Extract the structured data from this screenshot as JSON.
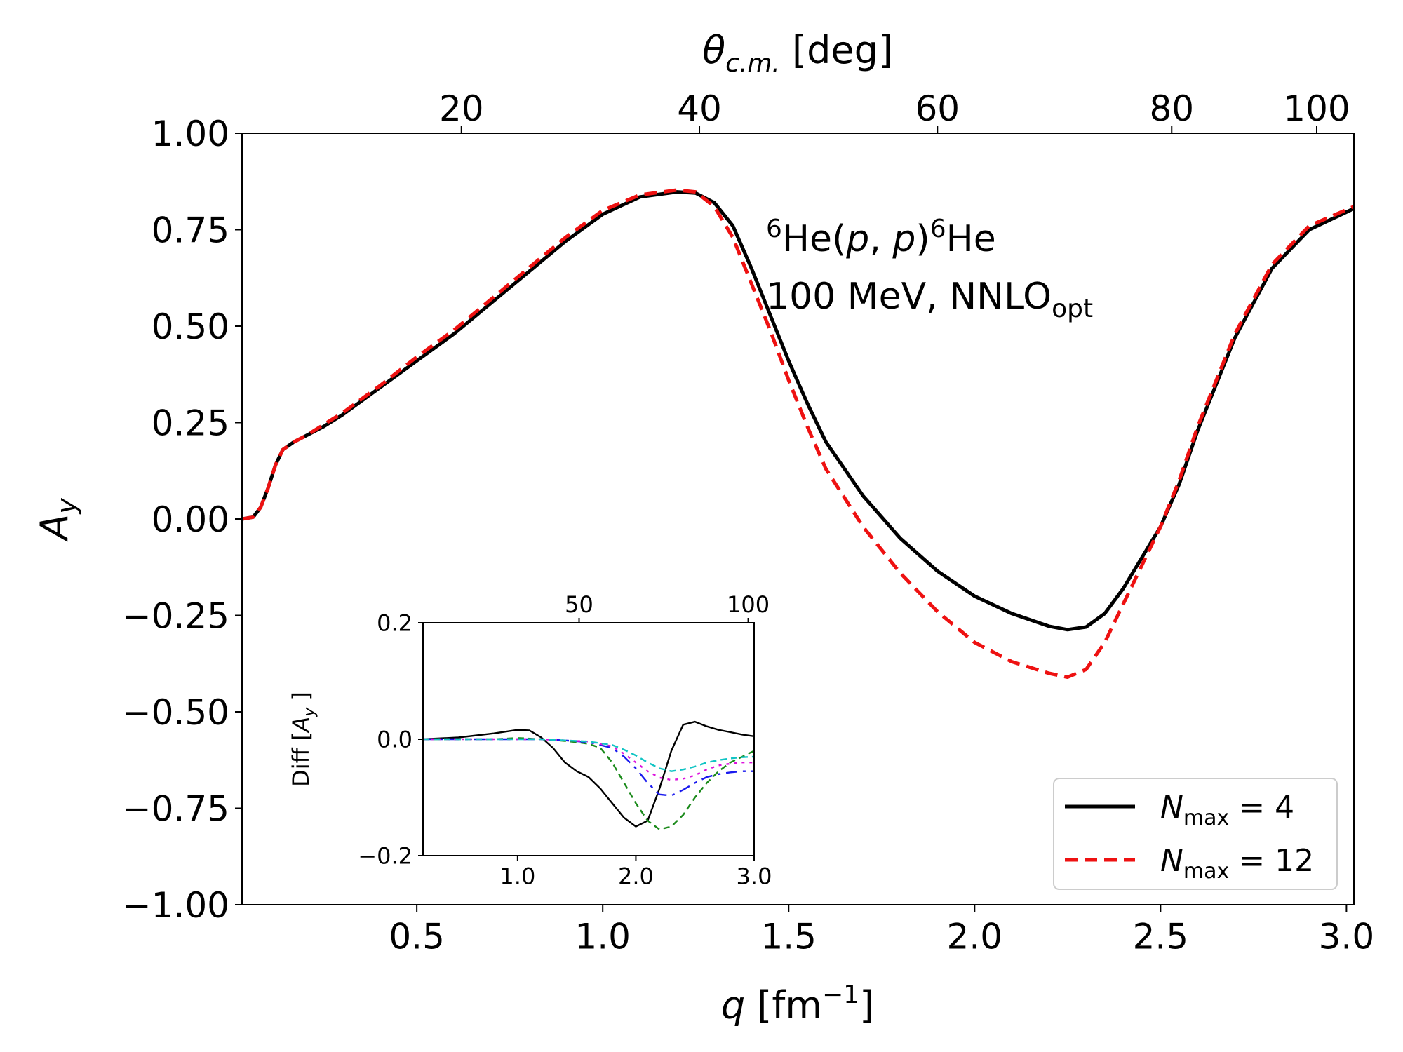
{
  "chart_data": [
    {
      "type": "line",
      "name": "main",
      "xlabel": "q [fm⁻¹]",
      "ylabel": "A_y",
      "top_xlabel": "θ_{c.m.} [deg]",
      "xlim": [
        0.03,
        3.02
      ],
      "ylim": [
        -1.0,
        1.0
      ],
      "xticks": [
        0.5,
        1.0,
        1.5,
        2.0,
        2.5,
        3.0
      ],
      "xtick_labels": [
        "0.5",
        "1.0",
        "1.5",
        "2.0",
        "2.5",
        "3.0"
      ],
      "yticks": [
        1.0,
        0.75,
        0.5,
        0.25,
        0.0,
        -0.25,
        -0.5,
        -0.75,
        -1.0
      ],
      "ytick_labels": [
        "1.00",
        "0.75",
        "0.50",
        "0.25",
        "0.00",
        "−0.25",
        "−0.50",
        "−0.75",
        "−1.00"
      ],
      "top_xticks_q": [
        0.62,
        1.26,
        1.9,
        2.53,
        2.92
      ],
      "top_xtick_labels": [
        "20",
        "40",
        "60",
        "80",
        "100"
      ],
      "annotation": {
        "line1": {
          "sup1": "6",
          "a": "He(",
          "p1": "p",
          "comma": ", ",
          "p2": "p",
          "b": ")",
          "sup2": "6",
          "c": "He"
        },
        "line2": {
          "text": "100 MeV, NNLO",
          "sub": "opt"
        }
      },
      "legend": {
        "position": "lower-right",
        "entries": [
          {
            "symbol": "N",
            "sub": "max",
            "eq": " = 4",
            "color": "#000000",
            "style": "solid"
          },
          {
            "symbol": "N",
            "sub": "max",
            "eq": " = 12",
            "color": "#ee1111",
            "style": "dashed"
          }
        ]
      },
      "series": [
        {
          "name": "Nmax = 4",
          "color": "#000000",
          "style": "solid",
          "x": [
            0.03,
            0.06,
            0.08,
            0.1,
            0.12,
            0.14,
            0.17,
            0.2,
            0.25,
            0.3,
            0.4,
            0.5,
            0.6,
            0.7,
            0.8,
            0.9,
            1.0,
            1.1,
            1.2,
            1.25,
            1.3,
            1.35,
            1.4,
            1.45,
            1.5,
            1.55,
            1.6,
            1.7,
            1.8,
            1.9,
            2.0,
            2.1,
            2.2,
            2.25,
            2.3,
            2.35,
            2.4,
            2.45,
            2.5,
            2.55,
            2.6,
            2.7,
            2.8,
            2.9,
            3.02
          ],
          "y": [
            0.0,
            0.005,
            0.03,
            0.08,
            0.14,
            0.18,
            0.2,
            0.215,
            0.24,
            0.27,
            0.34,
            0.41,
            0.48,
            0.56,
            0.64,
            0.72,
            0.79,
            0.835,
            0.848,
            0.845,
            0.82,
            0.76,
            0.65,
            0.53,
            0.41,
            0.3,
            0.2,
            0.06,
            -0.05,
            -0.135,
            -0.2,
            -0.245,
            -0.278,
            -0.287,
            -0.28,
            -0.245,
            -0.18,
            -0.1,
            -0.02,
            0.09,
            0.23,
            0.47,
            0.65,
            0.75,
            0.805
          ]
        },
        {
          "name": "Nmax = 12",
          "color": "#ee1111",
          "style": "dashed",
          "x": [
            0.03,
            0.06,
            0.08,
            0.1,
            0.12,
            0.14,
            0.17,
            0.2,
            0.25,
            0.3,
            0.4,
            0.5,
            0.6,
            0.7,
            0.8,
            0.9,
            1.0,
            1.1,
            1.2,
            1.25,
            1.3,
            1.35,
            1.4,
            1.45,
            1.5,
            1.55,
            1.6,
            1.7,
            1.8,
            1.9,
            2.0,
            2.1,
            2.2,
            2.25,
            2.3,
            2.35,
            2.4,
            2.45,
            2.5,
            2.55,
            2.6,
            2.7,
            2.8,
            2.9,
            3.02
          ],
          "y": [
            0.0,
            0.005,
            0.03,
            0.08,
            0.14,
            0.18,
            0.2,
            0.215,
            0.245,
            0.275,
            0.345,
            0.42,
            0.49,
            0.57,
            0.65,
            0.73,
            0.8,
            0.84,
            0.853,
            0.848,
            0.81,
            0.73,
            0.61,
            0.49,
            0.36,
            0.24,
            0.13,
            -0.02,
            -0.14,
            -0.24,
            -0.32,
            -0.37,
            -0.4,
            -0.41,
            -0.39,
            -0.32,
            -0.22,
            -0.12,
            -0.02,
            0.1,
            0.24,
            0.48,
            0.66,
            0.76,
            0.81
          ]
        }
      ]
    },
    {
      "type": "line",
      "name": "inset",
      "ylabel": "Diff [A_y ]",
      "xlim": [
        0.2,
        3.0
      ],
      "ylim": [
        -0.2,
        0.2
      ],
      "xticks": [
        1.0,
        2.0,
        3.0
      ],
      "xtick_labels": [
        "1.0",
        "2.0",
        "3.0"
      ],
      "yticks": [
        0.2,
        0.0,
        -0.2
      ],
      "ytick_labels": [
        "0.2",
        "0.0",
        "−0.2"
      ],
      "top_xticks_q": [
        1.52,
        2.95
      ],
      "top_xtick_labels": [
        "50",
        "100"
      ],
      "series": [
        {
          "name": "black",
          "color": "#000000",
          "style": "solid",
          "x": [
            0.2,
            0.5,
            0.8,
            1.0,
            1.1,
            1.2,
            1.3,
            1.4,
            1.5,
            1.6,
            1.7,
            1.8,
            1.9,
            2.0,
            2.1,
            2.2,
            2.3,
            2.4,
            2.5,
            2.6,
            2.7,
            2.8,
            2.9,
            3.0
          ],
          "y": [
            0.0,
            0.003,
            0.01,
            0.016,
            0.015,
            0.003,
            -0.015,
            -0.04,
            -0.055,
            -0.065,
            -0.085,
            -0.11,
            -0.135,
            -0.15,
            -0.14,
            -0.085,
            -0.02,
            0.025,
            0.03,
            0.022,
            0.016,
            0.012,
            0.008,
            0.005
          ]
        },
        {
          "name": "green",
          "color": "#1a8a1a",
          "style": "dashed",
          "x": [
            0.2,
            0.5,
            0.8,
            1.0,
            1.2,
            1.4,
            1.5,
            1.6,
            1.7,
            1.8,
            1.9,
            2.0,
            2.1,
            2.2,
            2.3,
            2.4,
            2.5,
            2.6,
            2.7,
            2.8,
            2.9,
            3.0
          ],
          "y": [
            0.0,
            0.0,
            0.0,
            0.002,
            0.0,
            -0.003,
            -0.005,
            -0.008,
            -0.015,
            -0.04,
            -0.075,
            -0.11,
            -0.14,
            -0.155,
            -0.15,
            -0.13,
            -0.1,
            -0.075,
            -0.055,
            -0.04,
            -0.03,
            -0.02
          ]
        },
        {
          "name": "blue",
          "color": "#1a1aee",
          "style": "dashdot",
          "x": [
            0.2,
            0.5,
            0.8,
            1.0,
            1.2,
            1.4,
            1.6,
            1.8,
            1.9,
            2.0,
            2.1,
            2.2,
            2.3,
            2.4,
            2.5,
            2.6,
            2.7,
            2.8,
            2.9,
            3.0
          ],
          "y": [
            0.0,
            0.0,
            0.0,
            0.0,
            0.0,
            -0.002,
            -0.005,
            -0.015,
            -0.03,
            -0.05,
            -0.075,
            -0.095,
            -0.097,
            -0.087,
            -0.075,
            -0.065,
            -0.06,
            -0.057,
            -0.055,
            -0.055
          ]
        },
        {
          "name": "magenta",
          "color": "#dd11dd",
          "style": "dotted",
          "x": [
            0.2,
            0.5,
            0.8,
            1.0,
            1.2,
            1.4,
            1.6,
            1.8,
            1.9,
            2.0,
            2.1,
            2.2,
            2.3,
            2.4,
            2.5,
            2.6,
            2.7,
            2.8,
            2.9,
            3.0
          ],
          "y": [
            0.0,
            0.0,
            0.0,
            0.0,
            0.0,
            -0.002,
            -0.004,
            -0.012,
            -0.025,
            -0.04,
            -0.055,
            -0.066,
            -0.07,
            -0.068,
            -0.062,
            -0.052,
            -0.045,
            -0.042,
            -0.04,
            -0.04
          ]
        },
        {
          "name": "cyan",
          "color": "#11c4c4",
          "style": "dashed",
          "x": [
            0.2,
            0.5,
            0.8,
            1.0,
            1.2,
            1.4,
            1.6,
            1.8,
            1.9,
            2.0,
            2.1,
            2.2,
            2.3,
            2.4,
            2.5,
            2.6,
            2.7,
            2.8,
            2.9,
            3.0
          ],
          "y": [
            0.0,
            0.0,
            0.0,
            0.0,
            0.0,
            -0.002,
            -0.004,
            -0.01,
            -0.018,
            -0.028,
            -0.04,
            -0.05,
            -0.055,
            -0.052,
            -0.047,
            -0.04,
            -0.036,
            -0.033,
            -0.031,
            -0.03
          ]
        }
      ]
    }
  ]
}
